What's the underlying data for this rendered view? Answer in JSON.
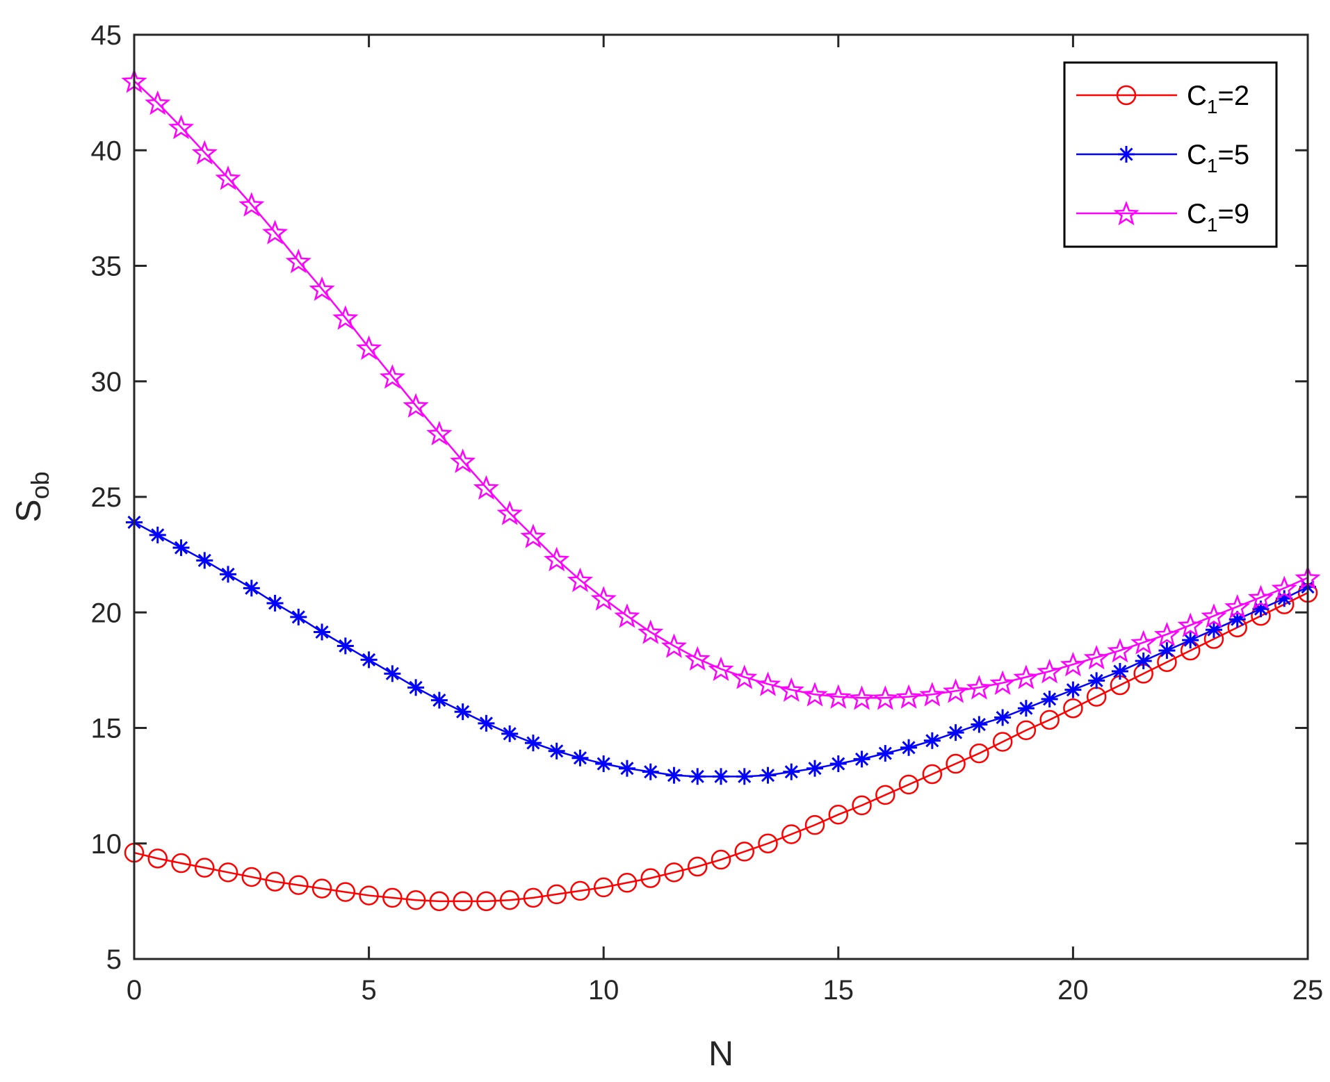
{
  "chart_data": {
    "type": "line",
    "xlabel": "N",
    "ylabel": {
      "main": "S",
      "sub": "ob"
    },
    "xlim": [
      0,
      25
    ],
    "ylim": [
      5,
      45
    ],
    "xticks": [
      "0",
      "5",
      "10",
      "15",
      "20",
      "25"
    ],
    "yticks": [
      "5",
      "10",
      "15",
      "20",
      "25",
      "30",
      "35",
      "40",
      "45"
    ],
    "grid": false,
    "legend_position": "top-right",
    "x": [
      0,
      0.5,
      1,
      1.5,
      2,
      2.5,
      3,
      3.5,
      4,
      4.5,
      5,
      5.5,
      6,
      6.5,
      7,
      7.5,
      8,
      8.5,
      9,
      9.5,
      10,
      10.5,
      11,
      11.5,
      12,
      12.5,
      13,
      13.5,
      14,
      14.5,
      15,
      15.5,
      16,
      16.5,
      17,
      17.5,
      18,
      18.5,
      19,
      19.5,
      20,
      20.5,
      21,
      21.5,
      22,
      22.5,
      23,
      23.5,
      24,
      24.5,
      25
    ],
    "series": [
      {
        "label_main": "C",
        "label_sub": "1",
        "label_tail": "=2",
        "color": "#ff0000",
        "marker": "circle",
        "values": [
          9.6,
          9.35,
          9.15,
          8.95,
          8.75,
          8.55,
          8.35,
          8.2,
          8.05,
          7.9,
          7.75,
          7.65,
          7.55,
          7.5,
          7.5,
          7.5,
          7.55,
          7.65,
          7.8,
          7.95,
          8.1,
          8.3,
          8.5,
          8.75,
          9.0,
          9.3,
          9.65,
          10.0,
          10.4,
          10.8,
          11.25,
          11.65,
          12.1,
          12.55,
          13.0,
          13.45,
          13.9,
          14.4,
          14.9,
          15.35,
          15.85,
          16.35,
          16.85,
          17.35,
          17.85,
          18.35,
          18.85,
          19.35,
          19.85,
          20.35,
          20.85
        ]
      },
      {
        "label_main": "C",
        "label_sub": "1",
        "label_tail": "=5",
        "color": "#0000ff",
        "marker": "asterisk",
        "values": [
          23.9,
          23.35,
          22.8,
          22.25,
          21.65,
          21.05,
          20.4,
          19.8,
          19.15,
          18.55,
          17.95,
          17.35,
          16.75,
          16.2,
          15.7,
          15.2,
          14.75,
          14.35,
          14.0,
          13.7,
          13.45,
          13.25,
          13.1,
          12.95,
          12.9,
          12.9,
          12.9,
          12.95,
          13.1,
          13.25,
          13.45,
          13.65,
          13.9,
          14.15,
          14.45,
          14.8,
          15.15,
          15.45,
          15.85,
          16.25,
          16.65,
          17.05,
          17.45,
          17.9,
          18.35,
          18.8,
          19.25,
          19.7,
          20.15,
          20.6,
          21.1
        ]
      },
      {
        "label_main": "C",
        "label_sub": "1",
        "label_tail": "=9",
        "color": "#ff00ff",
        "marker": "pentagram",
        "values": [
          43.0,
          42.05,
          41.0,
          39.9,
          38.8,
          37.65,
          36.45,
          35.2,
          34.0,
          32.75,
          31.45,
          30.2,
          28.95,
          27.75,
          26.55,
          25.4,
          24.3,
          23.3,
          22.3,
          21.4,
          20.6,
          19.85,
          19.15,
          18.55,
          18.0,
          17.55,
          17.2,
          16.9,
          16.65,
          16.45,
          16.35,
          16.3,
          16.3,
          16.35,
          16.45,
          16.6,
          16.75,
          16.95,
          17.2,
          17.45,
          17.75,
          18.05,
          18.35,
          18.7,
          19.05,
          19.45,
          19.85,
          20.25,
          20.65,
          21.05,
          21.5
        ]
      }
    ]
  }
}
